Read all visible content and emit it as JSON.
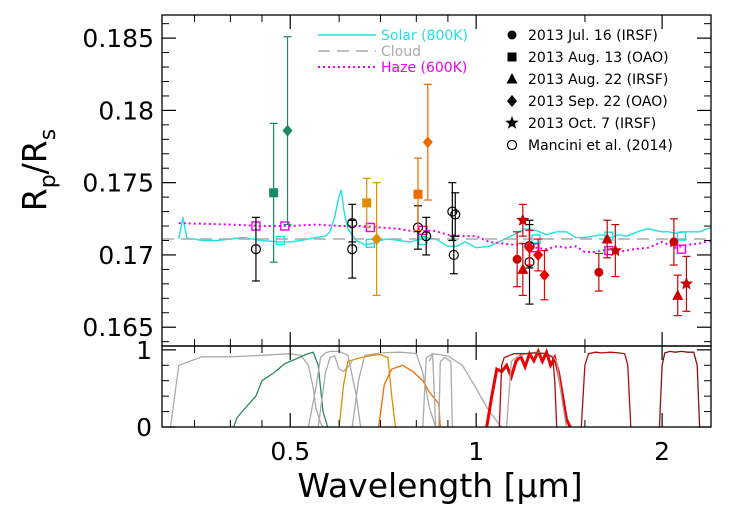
{
  "chart_data": {
    "type": "scatter",
    "xlabel": "Wavelength [μm]",
    "ylabel_main": "R",
    "ylabel_sub1": "p",
    "ylabel_slash": "/R",
    "ylabel_sub2": "s",
    "x_scale": "log",
    "xlim": [
      0.31,
      2.4
    ],
    "ylim": [
      0.1637,
      0.1866
    ],
    "x_ticks": [
      {
        "v": 0.5,
        "label": "0.5"
      },
      {
        "v": 1,
        "label": "1"
      },
      {
        "v": 2,
        "label": "2"
      }
    ],
    "y_ticks": [
      {
        "v": 0.165,
        "label": "0.165"
      },
      {
        "v": 0.17,
        "label": "0.17"
      },
      {
        "v": 0.175,
        "label": "0.175"
      },
      {
        "v": 0.18,
        "label": "0.18"
      },
      {
        "v": 0.185,
        "label": "0.185"
      }
    ],
    "legend_position": "top",
    "bottom_panel": {
      "ylim": [
        0,
        1.05
      ],
      "y_ticks": [
        {
          "v": 0,
          "label": "0"
        },
        {
          "v": 1,
          "label": "1"
        }
      ]
    },
    "model_legend": [
      {
        "label": "Solar (800K)",
        "color": "#22e0e0",
        "style": "solid"
      },
      {
        "label": "Cloud",
        "color": "#aaaaaa",
        "style": "dashed"
      },
      {
        "label": "Haze (600K)",
        "color": "#ee00ee",
        "style": "dotted"
      }
    ],
    "obs_legend": [
      {
        "label": "2013 Jul. 16 (IRSF)",
        "marker": "circle"
      },
      {
        "label": "2013 Aug. 13 (OAO)",
        "marker": "square"
      },
      {
        "label": "2013 Aug. 22 (IRSF)",
        "marker": "triangle"
      },
      {
        "label": "2013 Sep. 22 (OAO)",
        "marker": "diamond"
      },
      {
        "label": "2013 Oct. 7 (IRSF)",
        "marker": "star"
      },
      {
        "label": "Mancini et al. (2014)",
        "marker": "open-circle"
      }
    ],
    "models": [
      {
        "name": "Solar (800K)",
        "color": "#22e0e0",
        "style": "solid",
        "x": [
          0.33,
          0.335,
          0.34,
          0.345,
          0.35,
          0.36,
          0.38,
          0.4,
          0.42,
          0.45,
          0.48,
          0.5,
          0.52,
          0.55,
          0.57,
          0.58,
          0.59,
          0.6,
          0.605,
          0.61,
          0.62,
          0.64,
          0.66,
          0.68,
          0.7,
          0.72,
          0.75,
          0.78,
          0.8,
          0.83,
          0.86,
          0.9,
          0.93,
          0.96,
          1.0,
          1.05,
          1.1,
          1.15,
          1.2,
          1.25,
          1.3,
          1.35,
          1.4,
          1.45,
          1.5,
          1.55,
          1.6,
          1.65,
          1.7,
          1.75,
          1.8,
          1.85,
          1.9,
          2.0,
          2.05,
          2.1,
          2.15,
          2.2,
          2.3,
          2.4
        ],
        "y": [
          0.1711,
          0.1726,
          0.1712,
          0.1711,
          0.1711,
          0.171,
          0.171,
          0.1711,
          0.1712,
          0.171,
          0.1709,
          0.1709,
          0.171,
          0.1712,
          0.1713,
          0.1716,
          0.1726,
          0.1741,
          0.1745,
          0.1732,
          0.1718,
          0.171,
          0.1707,
          0.1708,
          0.171,
          0.1711,
          0.171,
          0.1709,
          0.171,
          0.1712,
          0.1711,
          0.1706,
          0.1706,
          0.1709,
          0.1705,
          0.1706,
          0.171,
          0.1714,
          0.1718,
          0.1717,
          0.1714,
          0.1716,
          0.1716,
          0.1712,
          0.1712,
          0.1713,
          0.1714,
          0.1712,
          0.1714,
          0.1713,
          0.1715,
          0.1717,
          0.1718,
          0.1716,
          0.1716,
          0.1715,
          0.1716,
          0.1716,
          0.1716,
          0.1719
        ]
      },
      {
        "name": "Cloud",
        "color": "#aaaaaa",
        "style": "dashed",
        "x": [
          0.31,
          2.4
        ],
        "y": [
          0.1711,
          0.1711
        ]
      },
      {
        "name": "Haze (600K)",
        "color": "#ee00ee",
        "style": "dotted",
        "x": [
          0.33,
          0.4,
          0.45,
          0.5,
          0.55,
          0.6,
          0.65,
          0.7,
          0.75,
          0.8,
          0.85,
          0.9,
          0.95,
          1.0,
          1.05,
          1.1,
          1.15,
          1.2,
          1.25,
          1.3,
          1.35,
          1.4,
          1.45,
          1.5,
          1.55,
          1.6,
          1.65,
          1.7,
          1.8,
          1.9,
          2.0,
          2.1,
          2.2,
          2.3,
          2.4
        ],
        "y": [
          0.1722,
          0.1721,
          0.172,
          0.172,
          0.1721,
          0.172,
          0.172,
          0.1719,
          0.1718,
          0.1716,
          0.1717,
          0.1714,
          0.1713,
          0.1713,
          0.1709,
          0.1708,
          0.1707,
          0.1708,
          0.1705,
          0.1704,
          0.1706,
          0.1705,
          0.1706,
          0.1702,
          0.1702,
          0.1703,
          0.1704,
          0.1702,
          0.1704,
          0.1705,
          0.1709,
          0.1705,
          0.1707,
          0.1708,
          0.171
        ]
      }
    ],
    "model_binned": [
      {
        "name": "Solar (800K)",
        "color": "#22e0e0",
        "x": [
          0.482,
          0.674,
          0.82,
          1.25,
          1.64,
          2.15
        ],
        "y": [
          0.171,
          0.1708,
          0.171,
          0.1711,
          0.1713,
          0.1713
        ]
      },
      {
        "name": "Haze (600K)",
        "color": "#ee00ee",
        "x": [
          0.44,
          0.49,
          0.674,
          0.82,
          1.245,
          1.64,
          2.15
        ],
        "y": [
          0.172,
          0.172,
          0.1719,
          0.1717,
          0.1705,
          0.1703,
          0.1704
        ]
      }
    ],
    "series": [
      {
        "name": "Mancini et al. (2014)",
        "marker": "open-circle",
        "color": "#000000",
        "points": [
          {
            "x": 0.44,
            "y": 0.1704,
            "yerr": 0.0022
          },
          {
            "x": 0.63,
            "y": 0.1704,
            "yerr": 0.002
          },
          {
            "x": 0.63,
            "y": 0.1722,
            "yerr": 0.0013
          },
          {
            "x": 0.805,
            "y": 0.1719,
            "yerr": 0.0015
          },
          {
            "x": 0.83,
            "y": 0.1713,
            "yerr": 0.0013
          },
          {
            "x": 0.915,
            "y": 0.173,
            "yerr": 0.002
          },
          {
            "x": 0.925,
            "y": 0.1728,
            "yerr": 0.0015
          },
          {
            "x": 0.92,
            "y": 0.17,
            "yerr": 0.0013
          },
          {
            "x": 1.22,
            "y": 0.1695,
            "yerr": 0.0029
          },
          {
            "x": 1.22,
            "y": 0.1706,
            "yerr": 0.0015
          }
        ]
      },
      {
        "name": "2013 Aug. 13 (OAO)",
        "marker": "square",
        "color": "#1a8a6a",
        "points": [
          {
            "x": 0.47,
            "y": 0.1743,
            "yerr": 0.0048
          }
        ]
      },
      {
        "name": "2013 Sep. 22 (OAO)",
        "marker": "diamond",
        "color": "#1a8a6a",
        "points": [
          {
            "x": 0.495,
            "y": 0.1786,
            "yerr": 0.0065
          }
        ]
      },
      {
        "name": "2013 Aug. 13 (OAO)",
        "marker": "square",
        "color": "#e08c00",
        "points": [
          {
            "x": 0.665,
            "y": 0.1736,
            "yerr": 0.0017
          }
        ]
      },
      {
        "name": "2013 Sep. 22 (OAO)",
        "marker": "diamond",
        "color": "#e08c00",
        "points": [
          {
            "x": 0.69,
            "y": 0.1711,
            "yerr": 0.0039
          }
        ]
      },
      {
        "name": "2013 Aug. 13 (OAO)",
        "marker": "square",
        "color": "#f06a00",
        "points": [
          {
            "x": 0.805,
            "y": 0.1742,
            "yerr": 0.0025
          }
        ]
      },
      {
        "name": "2013 Sep. 22 (OAO)",
        "marker": "diamond",
        "color": "#f06a00",
        "points": [
          {
            "x": 0.835,
            "y": 0.1778,
            "yerr": 0.004
          }
        ]
      },
      {
        "name": "2013 Jul. 16 (IRSF)",
        "marker": "circle",
        "color": "#cc0000",
        "points": [
          {
            "x": 1.165,
            "y": 0.1697,
            "yerr": 0.0019
          },
          {
            "x": 1.58,
            "y": 0.1688,
            "yerr": 0.0013
          },
          {
            "x": 2.09,
            "y": 0.1709,
            "yerr": 0.0016
          }
        ]
      },
      {
        "name": "2013 Aug. 22 (IRSF)",
        "marker": "triangle",
        "color": "#cc0000",
        "points": [
          {
            "x": 1.19,
            "y": 0.169,
            "yerr": 0.0018
          },
          {
            "x": 1.63,
            "y": 0.1711,
            "yerr": 0.0013
          },
          {
            "x": 2.12,
            "y": 0.1672,
            "yerr": 0.0014
          }
        ]
      },
      {
        "name": "2013 Sep. 22 (OAO)",
        "marker": "diamond",
        "color": "#ee0000",
        "points": [
          {
            "x": 1.22,
            "y": 0.1705,
            "yerr": 0.0012
          },
          {
            "x": 1.26,
            "y": 0.17,
            "yerr": 0.0011
          },
          {
            "x": 1.29,
            "y": 0.1686,
            "yerr": 0.0017
          }
        ]
      },
      {
        "name": "2013 Oct. 7 (IRSF)",
        "marker": "star",
        "color": "#cc0000",
        "points": [
          {
            "x": 1.19,
            "y": 0.1724,
            "yerr": 0.0011
          },
          {
            "x": 1.68,
            "y": 0.1703,
            "yerr": 0.0018
          },
          {
            "x": 2.19,
            "y": 0.168,
            "yerr": 0.0019
          }
        ]
      }
    ],
    "filter_curves": [
      {
        "color": "#aaaaaa",
        "x": [
          0.32,
          0.33,
          0.36,
          0.4,
          0.45,
          0.5,
          0.52,
          0.535,
          0.545,
          0.55,
          0.56,
          0.565
        ],
        "y": [
          0.0,
          0.8,
          0.91,
          0.91,
          0.93,
          0.95,
          0.93,
          0.8,
          0.5,
          0.25,
          0.05,
          0.0
        ]
      },
      {
        "color": "#2a8a5a",
        "x": [
          0.405,
          0.41,
          0.42,
          0.44,
          0.45,
          0.47,
          0.49,
          0.51,
          0.53,
          0.545,
          0.555,
          0.565,
          0.575
        ],
        "y": [
          0.0,
          0.12,
          0.22,
          0.4,
          0.6,
          0.7,
          0.82,
          0.88,
          0.94,
          0.97,
          0.8,
          0.2,
          0.0
        ]
      },
      {
        "color": "#aaaaaa",
        "x": [
          0.535,
          0.55,
          0.56,
          0.57,
          0.58,
          0.6,
          0.62,
          0.64,
          0.65
        ],
        "y": [
          0.0,
          0.5,
          0.9,
          0.96,
          0.98,
          0.98,
          0.93,
          0.4,
          0.0
        ]
      },
      {
        "color": "#aaaaaa",
        "x": [
          0.555,
          0.57,
          0.58,
          0.59,
          0.6,
          0.61,
          0.62,
          0.63
        ],
        "y": [
          0.0,
          0.7,
          0.9,
          0.92,
          0.75,
          0.72,
          0.78,
          0.85
        ]
      },
      {
        "color": "#e08c00",
        "x": [
          0.6,
          0.61,
          0.62,
          0.65,
          0.68,
          0.7,
          0.72,
          0.73,
          0.74
        ],
        "y": [
          0.0,
          0.55,
          0.85,
          0.9,
          0.93,
          0.94,
          0.9,
          0.4,
          0.0
        ]
      },
      {
        "color": "#aaaaaa",
        "x": [
          0.63,
          0.645,
          0.66,
          0.7,
          0.75,
          0.78,
          0.8,
          0.82,
          0.84,
          0.86
        ],
        "y": [
          0.0,
          0.6,
          0.93,
          0.96,
          0.97,
          0.96,
          0.95,
          0.7,
          0.25,
          0.0
        ]
      },
      {
        "color": "#f06a00",
        "x": [
          0.695,
          0.71,
          0.73,
          0.76,
          0.79,
          0.82,
          0.84,
          0.86,
          0.87,
          0.875
        ],
        "y": [
          0.0,
          0.55,
          0.75,
          0.8,
          0.72,
          0.6,
          0.45,
          0.35,
          0.3,
          0.0
        ]
      },
      {
        "color": "#aaaaaa",
        "x": [
          0.84,
          0.85,
          0.87,
          0.9,
          0.95,
          1.0,
          1.05,
          1.1
        ],
        "y": [
          0.85,
          0.95,
          0.94,
          0.92,
          0.8,
          0.5,
          0.2,
          0.0
        ]
      },
      {
        "color": "#aaaaaa",
        "x": [
          0.82,
          0.83,
          0.85,
          0.86
        ],
        "y": [
          0.0,
          0.9,
          0.95,
          0.0
        ]
      },
      {
        "color": "#aaaaaa",
        "x": [
          0.87,
          0.875,
          0.89,
          0.91,
          0.915
        ],
        "y": [
          0.0,
          0.85,
          0.9,
          0.85,
          0.0
        ]
      },
      {
        "color": "#ee0000",
        "width": 3,
        "x": [
          1.04,
          1.06,
          1.08,
          1.1,
          1.12,
          1.14,
          1.16,
          1.18,
          1.2,
          1.22,
          1.24,
          1.26,
          1.28,
          1.3,
          1.32,
          1.34,
          1.36,
          1.38,
          1.4,
          1.42
        ],
        "y": [
          0.0,
          0.4,
          0.75,
          0.72,
          0.8,
          0.65,
          0.85,
          0.92,
          0.78,
          0.95,
          0.86,
          0.98,
          0.85,
          0.97,
          0.8,
          0.9,
          0.7,
          0.4,
          0.1,
          0.0
        ]
      },
      {
        "color": "#aaaaaa",
        "x": [
          1.12,
          1.14,
          1.16,
          1.2,
          1.25,
          1.3,
          1.33,
          1.35,
          1.38,
          1.4
        ],
        "y": [
          0.0,
          0.85,
          0.9,
          0.95,
          0.97,
          0.95,
          0.92,
          0.85,
          0.3,
          0.0
        ]
      },
      {
        "color": "#aa1111",
        "x": [
          1.09,
          1.1,
          1.11,
          1.15,
          1.2,
          1.25,
          1.3,
          1.33,
          1.34,
          1.35
        ],
        "y": [
          0.0,
          0.8,
          0.9,
          0.95,
          0.95,
          0.96,
          0.95,
          0.9,
          0.6,
          0.0
        ]
      },
      {
        "color": "#aa1111",
        "x": [
          1.48,
          1.5,
          1.52,
          1.56,
          1.6,
          1.65,
          1.7,
          1.74,
          1.76,
          1.78
        ],
        "y": [
          0.0,
          0.8,
          0.95,
          0.97,
          0.96,
          0.97,
          0.96,
          0.95,
          0.8,
          0.0
        ]
      },
      {
        "color": "#881111",
        "x": [
          1.98,
          2.0,
          2.02,
          2.06,
          2.1,
          2.15,
          2.2,
          2.25,
          2.28,
          2.3
        ],
        "y": [
          0.0,
          0.8,
          0.96,
          0.98,
          0.97,
          0.98,
          0.97,
          0.97,
          0.8,
          0.0
        ]
      }
    ]
  }
}
